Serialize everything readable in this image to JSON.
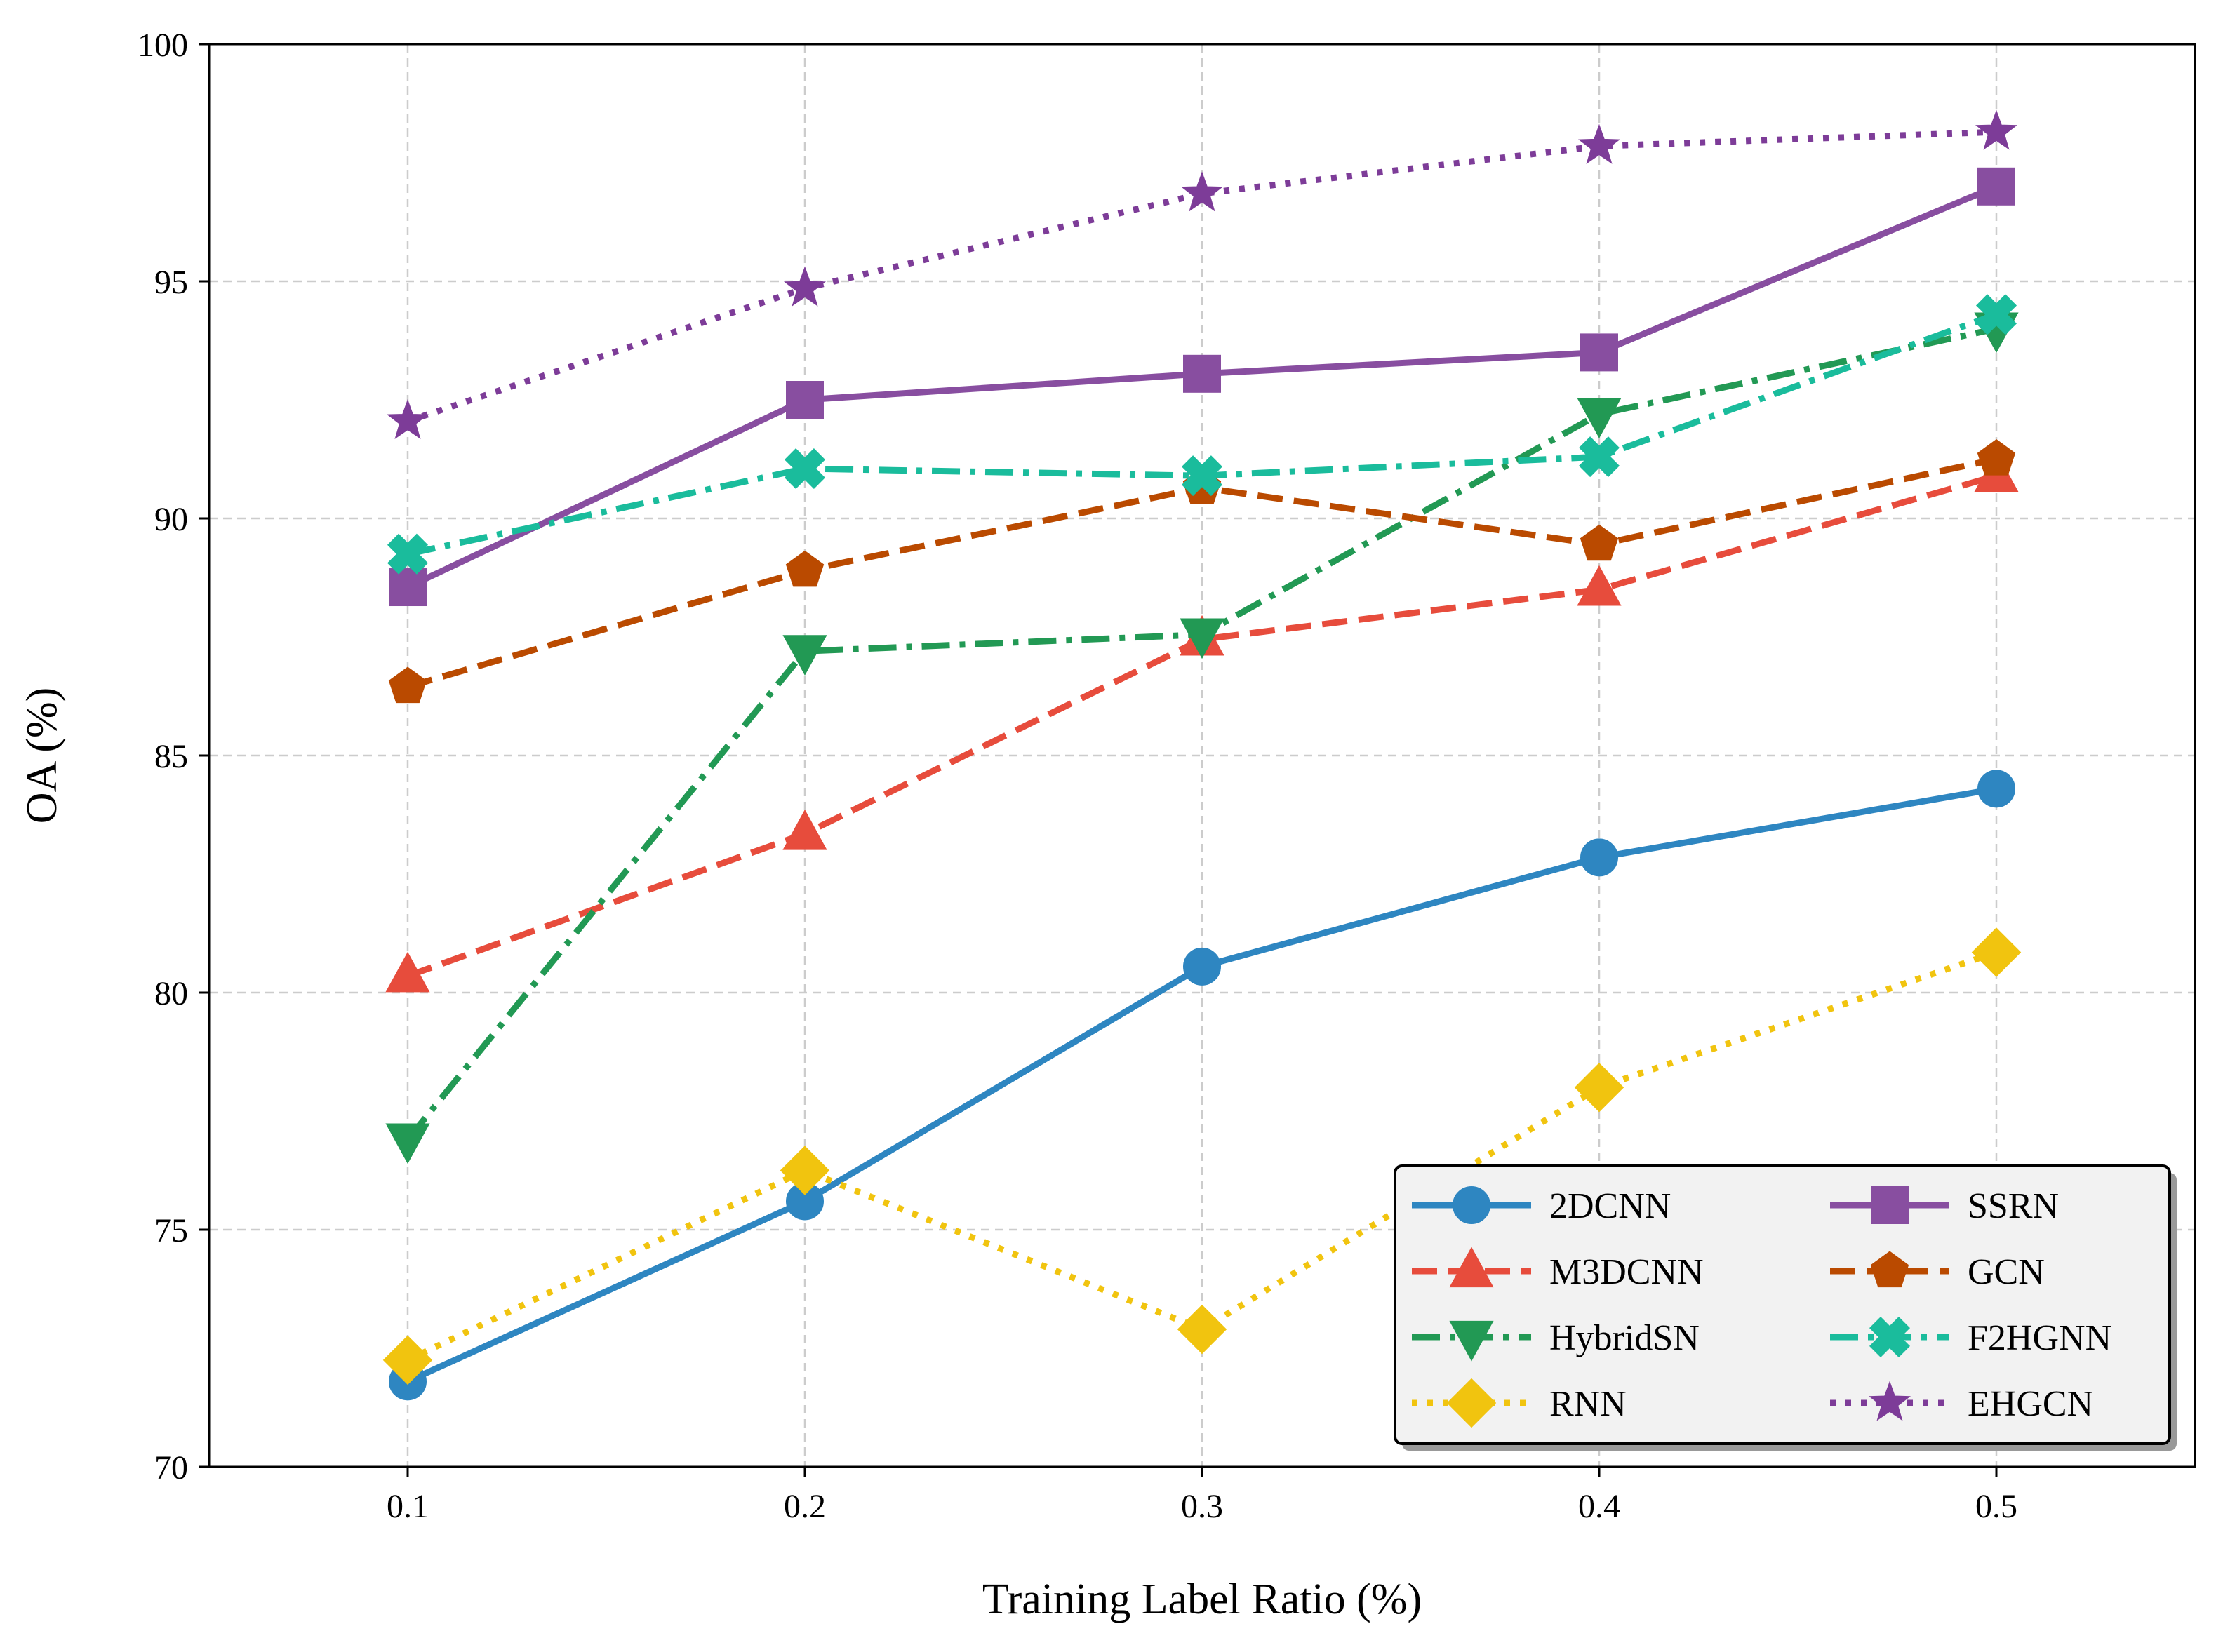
{
  "chart_data": {
    "type": "line",
    "title": "",
    "xlabel": "Training Label Ratio (%)",
    "ylabel": "OA (%)",
    "x": [
      0.1,
      0.2,
      0.3,
      0.4,
      0.5
    ],
    "x_tick_labels": [
      "0.1",
      "0.2",
      "0.3",
      "0.4",
      "0.5"
    ],
    "xlim": [
      0.05,
      0.55
    ],
    "ylim": [
      70,
      100
    ],
    "y_ticks": [
      70,
      75,
      80,
      85,
      90,
      95,
      100
    ],
    "y_tick_labels": [
      "70",
      "75",
      "80",
      "85",
      "90",
      "95",
      "100"
    ],
    "grid": true,
    "legend_position": "bottom-right",
    "legend_columns": 2,
    "series": [
      {
        "name": "2DCNN",
        "values": [
          71.8,
          75.6,
          80.55,
          82.85,
          84.3
        ],
        "color": "#2e86c1",
        "dash": "solid",
        "marker": "circle"
      },
      {
        "name": "M3DCNN",
        "values": [
          80.35,
          83.35,
          87.45,
          88.5,
          90.9
        ],
        "color": "#e74c3c",
        "dash": "dashed",
        "marker": "triangle-up"
      },
      {
        "name": "HybridSN",
        "values": [
          76.9,
          87.2,
          87.55,
          92.2,
          94.0
        ],
        "color": "#229954",
        "dash": "dashdot",
        "marker": "triangle-down"
      },
      {
        "name": "RNN",
        "values": [
          72.25,
          76.25,
          72.9,
          78.0,
          80.85
        ],
        "color": "#f1c40f",
        "dash": "dotted",
        "marker": "diamond"
      },
      {
        "name": "SSRN",
        "values": [
          88.55,
          92.5,
          93.05,
          93.5,
          97.0
        ],
        "color": "#884ea0",
        "dash": "solid",
        "marker": "square"
      },
      {
        "name": "GCN",
        "values": [
          86.45,
          88.9,
          90.65,
          89.45,
          91.25
        ],
        "color": "#ba4a00",
        "dash": "dashed",
        "marker": "pentagon"
      },
      {
        "name": "F2HGNN",
        "values": [
          89.25,
          91.05,
          90.9,
          91.3,
          94.3
        ],
        "color": "#1abc9c",
        "dash": "dashdot",
        "marker": "x-filled"
      },
      {
        "name": "EHGCN",
        "values": [
          92.05,
          94.85,
          96.85,
          97.85,
          98.15
        ],
        "color": "#7d3c98",
        "dash": "dotted",
        "marker": "star"
      }
    ]
  }
}
